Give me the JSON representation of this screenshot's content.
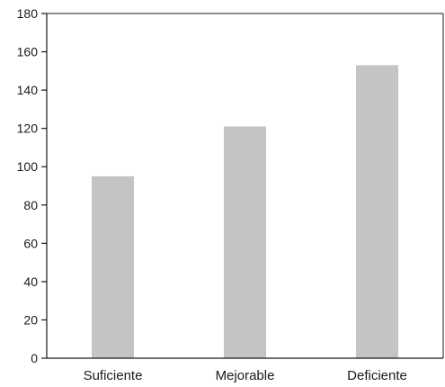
{
  "chart_data": {
    "type": "bar",
    "categories": [
      "Suficiente",
      "Mejorable",
      "Deficiente"
    ],
    "values": [
      95,
      121,
      153
    ],
    "ylim": [
      0,
      180
    ],
    "yticks": [
      0,
      20,
      40,
      60,
      80,
      100,
      120,
      140,
      160,
      180
    ],
    "bar_color": "#c4c4c4",
    "grid": false,
    "title": "",
    "xlabel": "",
    "ylabel": ""
  }
}
